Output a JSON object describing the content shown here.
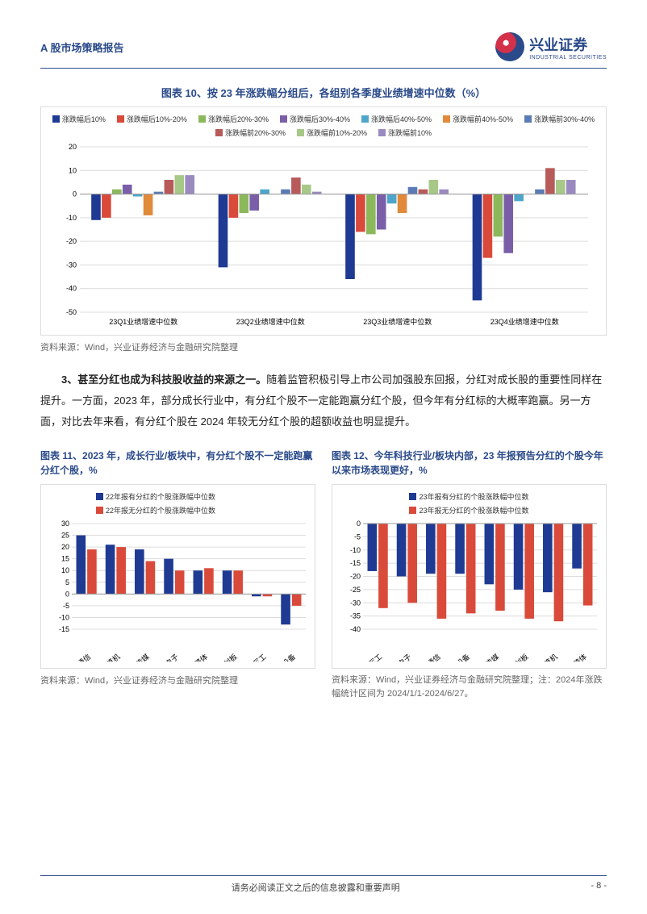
{
  "header": {
    "title": "A 股市场策略报告"
  },
  "logo": {
    "cn": "兴业证券",
    "en": "INDUSTRIAL SECURITIES"
  },
  "chart10": {
    "title": "图表 10、按 23 年涨跌幅分组后，各组别各季度业绩增速中位数（%）",
    "source": "资料来源：Wind，兴业证券经济与金融研究院整理",
    "legend": [
      {
        "label": "涨跌幅后10%",
        "color": "#1f3a93"
      },
      {
        "label": "涨跌幅后10%-20%",
        "color": "#d94a3a"
      },
      {
        "label": "涨跌幅后20%-30%",
        "color": "#8cb85c"
      },
      {
        "label": "涨跌幅后30%-40%",
        "color": "#7a5fa8"
      },
      {
        "label": "涨跌幅后40%-50%",
        "color": "#4da6c9"
      },
      {
        "label": "涨跌幅前40%-50%",
        "color": "#e08a3a"
      },
      {
        "label": "涨跌幅前30%-40%",
        "color": "#5b7bb5"
      },
      {
        "label": "涨跌幅前20%-30%",
        "color": "#b85a5a"
      },
      {
        "label": "涨跌幅前10%-20%",
        "color": "#a8c888"
      },
      {
        "label": "涨跌幅前10%",
        "color": "#9b8abf"
      }
    ],
    "categories": [
      "23Q1业绩增速中位数",
      "23Q2业绩增速中位数",
      "23Q3业绩增速中位数",
      "23Q4业绩增速中位数"
    ],
    "series": [
      [
        -11,
        -10,
        2,
        4,
        -1,
        -9,
        1,
        6,
        8,
        8
      ],
      [
        -31,
        -10,
        -8,
        -7,
        2,
        0,
        2,
        7,
        4,
        1
      ],
      [
        -36,
        -16,
        -17,
        -15,
        -4,
        -8,
        3,
        2,
        6,
        2
      ],
      [
        -45,
        -27,
        -18,
        -25,
        -3,
        0,
        2,
        11,
        6,
        6
      ]
    ],
    "ylim": [
      -50,
      20
    ],
    "ytick_step": 10,
    "grid_color": "#dcdcdc",
    "bg": "#ffffff"
  },
  "paragraph": {
    "lead": "3、甚至分红也成为科技股收益的来源之一。",
    "rest": "随着监管积极引导上市公司加强股东回报，分红对成长股的重要性同样在提升。一方面，2023 年，部分成长行业中，有分红个股不一定能跑赢分红个股，但今年有分红标的大概率跑赢。另一方面，对比去年来看，有分红个股在 2024 年较无分红个股的超额收益也明显提升。"
  },
  "chart11": {
    "title": "图表 11、2023 年，成长行业/板块中，有分红个股不一定能跑赢分红个股，%",
    "source": "资料来源：Wind，兴业证券经济与金融研究院整理",
    "legend": [
      {
        "label": "22年报有分红的个股涨跌幅中位数",
        "color": "#1f3a93"
      },
      {
        "label": "22年报无分红的个股涨跌幅中位数",
        "color": "#d94a3a"
      }
    ],
    "categories": [
      "通信",
      "计算机",
      "传媒",
      "电子",
      "整体",
      "科创板",
      "国防军工",
      "电力设备"
    ],
    "seriesA": [
      25,
      21,
      19,
      15,
      10,
      10,
      -1,
      -13
    ],
    "seriesB": [
      19,
      20,
      14,
      10,
      11,
      10,
      -1,
      -5
    ],
    "ylim": [
      -15,
      30
    ],
    "ytick_step": 5,
    "grid_color": "#dcdcdc"
  },
  "chart12": {
    "title": "图表 12、今年科技行业/板块内部，23 年报预告分红的个股今年以来市场表现更好，%",
    "source": "资料来源：Wind，兴业证券经济与金融研究院整理；注：2024年涨跌幅统计区间为 2024/1/1-2024/6/27。",
    "legend": [
      {
        "label": "23年报有分红的个股涨跌幅中位数",
        "color": "#1f3a93"
      },
      {
        "label": "23年报无分红的个股涨跌幅中位数",
        "color": "#d94a3a"
      }
    ],
    "categories": [
      "国防军工",
      "电子",
      "通信",
      "电力设备",
      "传媒",
      "科创板",
      "计算机",
      "整体"
    ],
    "seriesA": [
      -18,
      -20,
      -19,
      -19,
      -23,
      -25,
      -26,
      -17
    ],
    "seriesB": [
      -32,
      -30,
      -36,
      -34,
      -33,
      -36,
      -37,
      -31
    ],
    "ylim": [
      -40,
      0
    ],
    "ytick_step": 5,
    "grid_color": "#dcdcdc"
  },
  "footer": {
    "disclaimer": "请务必阅读正文之后的信息披露和重要声明",
    "page": "- 8 -"
  }
}
